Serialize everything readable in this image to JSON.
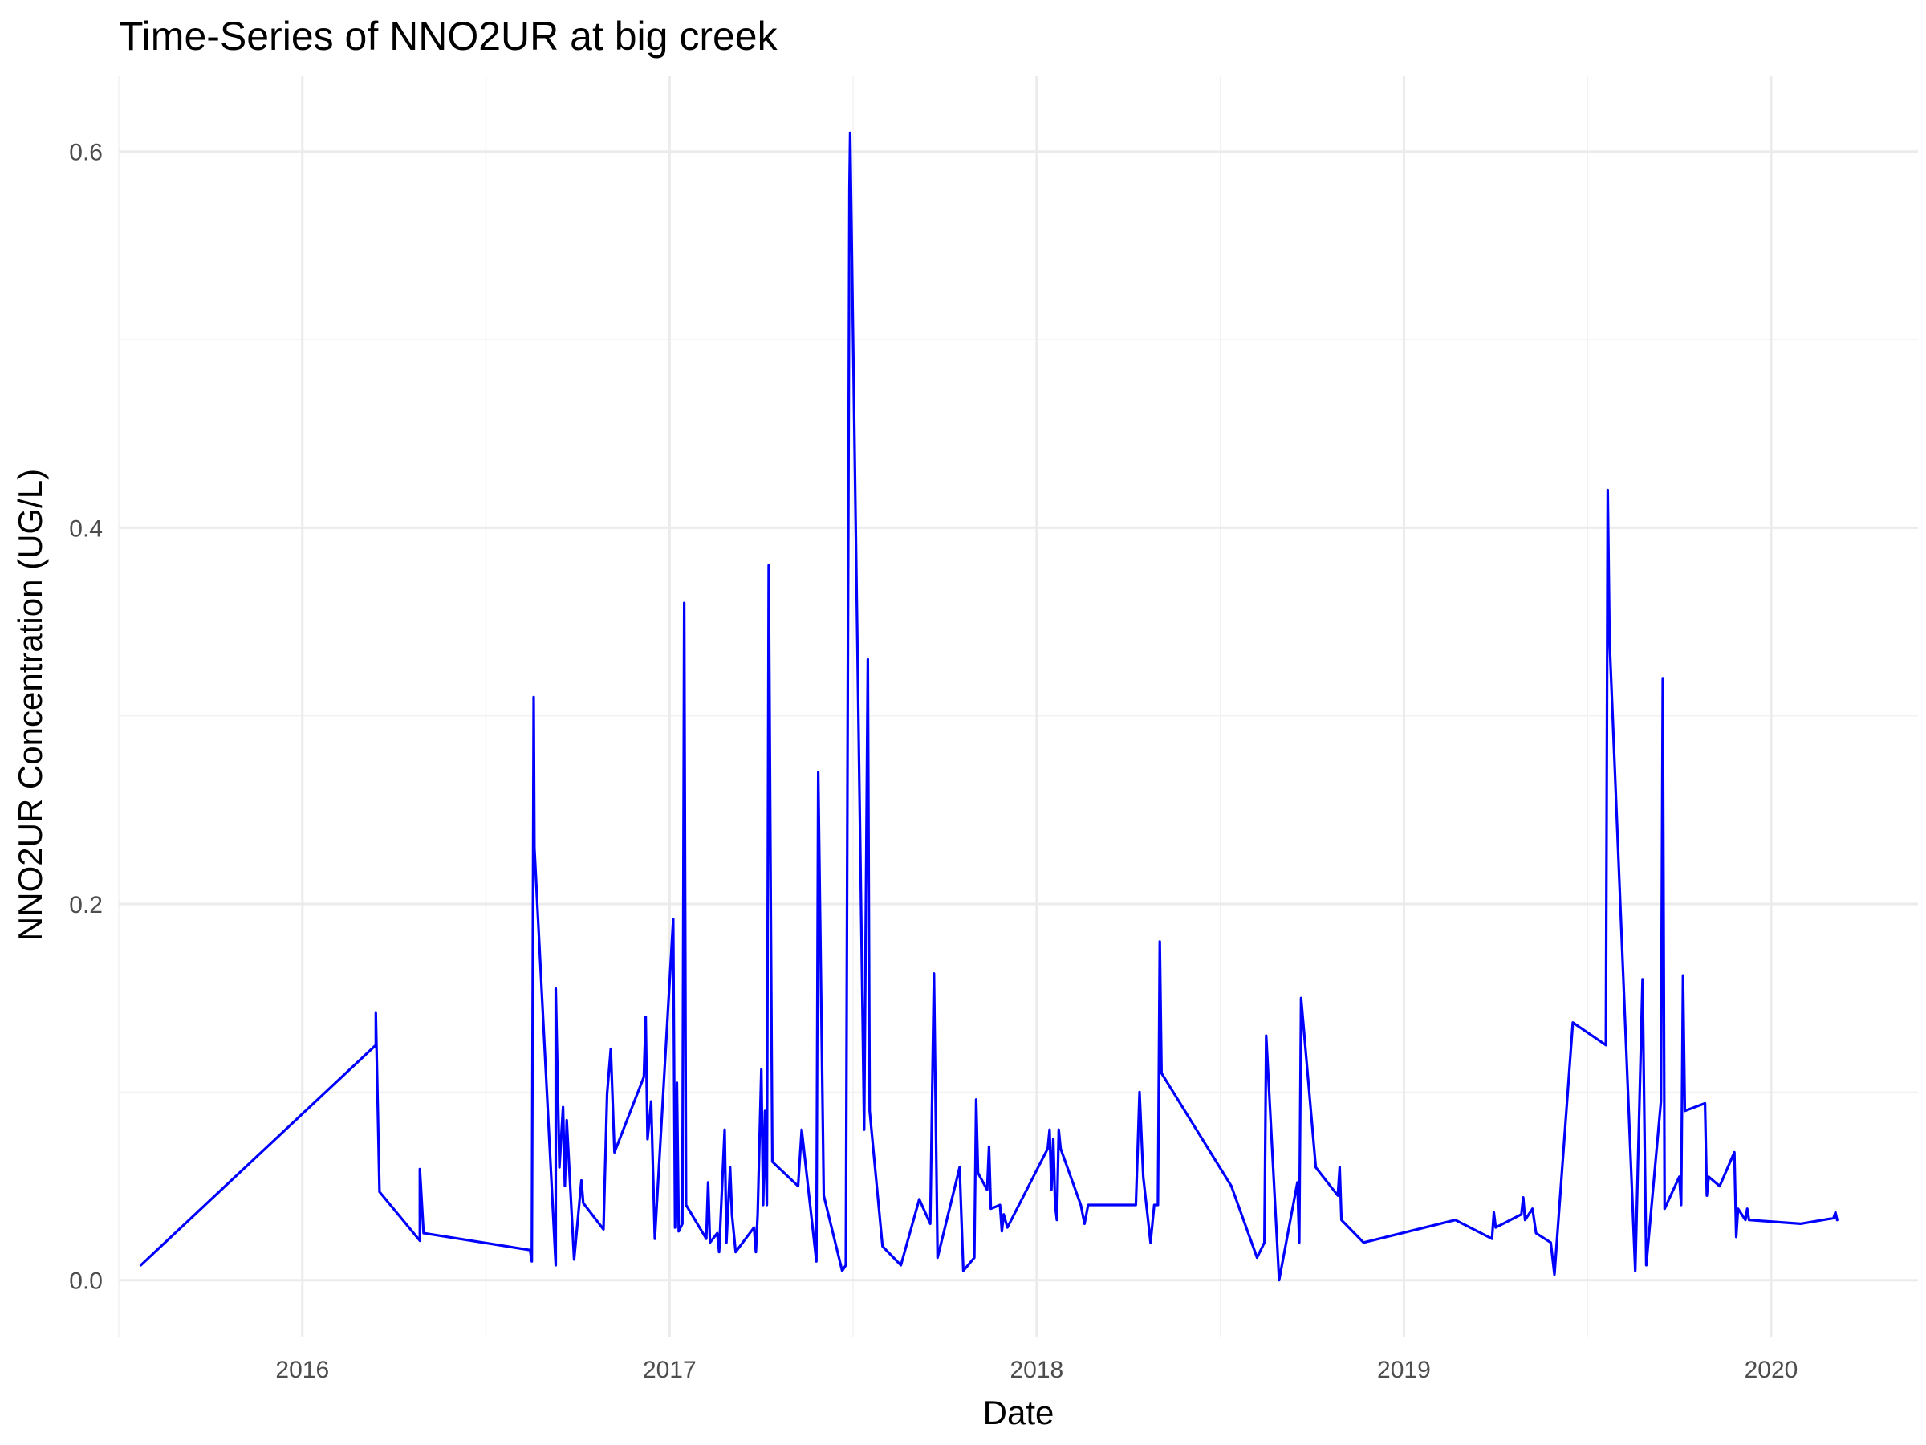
{
  "chart_data": {
    "type": "line",
    "title": "Time-Series of NNO2UR at big creek",
    "xlabel": "Date",
    "ylabel": "NNO2UR Concentration (UG/L)",
    "x_ticks": [
      "2016",
      "2017",
      "2018",
      "2019",
      "2020"
    ],
    "y_ticks": [
      "0.0",
      "0.2",
      "0.4",
      "0.6"
    ],
    "xlim": [
      2015.5,
      2020.4
    ],
    "ylim": [
      -0.03,
      0.64
    ],
    "grid": true,
    "legend": "none",
    "series": [
      {
        "color": "#0000ff",
        "points": [
          [
            2015.56,
            0.008
          ],
          [
            2016.2,
            0.125
          ],
          [
            2016.2,
            0.142
          ],
          [
            2016.21,
            0.047
          ],
          [
            2016.32,
            0.021
          ],
          [
            2016.32,
            0.059
          ],
          [
            2016.33,
            0.025
          ],
          [
            2016.62,
            0.016
          ],
          [
            2016.625,
            0.01
          ],
          [
            2016.63,
            0.31
          ],
          [
            2016.632,
            0.23
          ],
          [
            2016.69,
            0.008
          ],
          [
            2016.69,
            0.155
          ],
          [
            2016.7,
            0.06
          ],
          [
            2016.71,
            0.092
          ],
          [
            2016.715,
            0.05
          ],
          [
            2016.72,
            0.085
          ],
          [
            2016.74,
            0.011
          ],
          [
            2016.76,
            0.053
          ],
          [
            2016.765,
            0.041
          ],
          [
            2016.82,
            0.027
          ],
          [
            2016.83,
            0.099
          ],
          [
            2016.84,
            0.123
          ],
          [
            2016.85,
            0.068
          ],
          [
            2016.93,
            0.108
          ],
          [
            2016.935,
            0.14
          ],
          [
            2016.94,
            0.075
          ],
          [
            2016.95,
            0.095
          ],
          [
            2016.96,
            0.022
          ],
          [
            2017.01,
            0.192
          ],
          [
            2017.015,
            0.028
          ],
          [
            2017.02,
            0.105
          ],
          [
            2017.025,
            0.026
          ],
          [
            2017.035,
            0.03
          ],
          [
            2017.04,
            0.36
          ],
          [
            2017.045,
            0.04
          ],
          [
            2017.1,
            0.022
          ],
          [
            2017.105,
            0.052
          ],
          [
            2017.11,
            0.02
          ],
          [
            2017.13,
            0.025
          ],
          [
            2017.135,
            0.015
          ],
          [
            2017.15,
            0.08
          ],
          [
            2017.155,
            0.02
          ],
          [
            2017.165,
            0.06
          ],
          [
            2017.17,
            0.035
          ],
          [
            2017.18,
            0.015
          ],
          [
            2017.23,
            0.028
          ],
          [
            2017.235,
            0.015
          ],
          [
            2017.24,
            0.035
          ],
          [
            2017.25,
            0.112
          ],
          [
            2017.255,
            0.04
          ],
          [
            2017.26,
            0.09
          ],
          [
            2017.265,
            0.04
          ],
          [
            2017.27,
            0.38
          ],
          [
            2017.28,
            0.063
          ],
          [
            2017.35,
            0.05
          ],
          [
            2017.36,
            0.08
          ],
          [
            2017.4,
            0.01
          ],
          [
            2017.405,
            0.27
          ],
          [
            2017.42,
            0.045
          ],
          [
            2017.47,
            0.005
          ],
          [
            2017.48,
            0.008
          ],
          [
            2017.49,
            0.58
          ],
          [
            2017.492,
            0.61
          ],
          [
            2017.52,
            0.22
          ],
          [
            2017.53,
            0.08
          ],
          [
            2017.54,
            0.33
          ],
          [
            2017.545,
            0.09
          ],
          [
            2017.58,
            0.018
          ],
          [
            2017.63,
            0.008
          ],
          [
            2017.68,
            0.043
          ],
          [
            2017.71,
            0.03
          ],
          [
            2017.72,
            0.163
          ],
          [
            2017.73,
            0.012
          ],
          [
            2017.79,
            0.06
          ],
          [
            2017.8,
            0.005
          ],
          [
            2017.83,
            0.012
          ],
          [
            2017.835,
            0.096
          ],
          [
            2017.84,
            0.057
          ],
          [
            2017.865,
            0.048
          ],
          [
            2017.87,
            0.071
          ],
          [
            2017.875,
            0.038
          ],
          [
            2017.9,
            0.04
          ],
          [
            2017.905,
            0.026
          ],
          [
            2017.91,
            0.035
          ],
          [
            2017.92,
            0.028
          ],
          [
            2018.03,
            0.07
          ],
          [
            2018.035,
            0.08
          ],
          [
            2018.04,
            0.048
          ],
          [
            2018.045,
            0.075
          ],
          [
            2018.05,
            0.04
          ],
          [
            2018.055,
            0.032
          ],
          [
            2018.06,
            0.08
          ],
          [
            2018.065,
            0.07
          ],
          [
            2018.12,
            0.04
          ],
          [
            2018.13,
            0.03
          ],
          [
            2018.14,
            0.04
          ],
          [
            2018.27,
            0.04
          ],
          [
            2018.28,
            0.1
          ],
          [
            2018.29,
            0.055
          ],
          [
            2018.31,
            0.02
          ],
          [
            2018.32,
            0.04
          ],
          [
            2018.33,
            0.04
          ],
          [
            2018.335,
            0.18
          ],
          [
            2018.34,
            0.11
          ],
          [
            2018.53,
            0.05
          ],
          [
            2018.6,
            0.012
          ],
          [
            2018.62,
            0.02
          ],
          [
            2018.625,
            0.13
          ],
          [
            2018.66,
            0.0
          ],
          [
            2018.71,
            0.052
          ],
          [
            2018.715,
            0.02
          ],
          [
            2018.72,
            0.15
          ],
          [
            2018.76,
            0.06
          ],
          [
            2018.82,
            0.045
          ],
          [
            2018.825,
            0.06
          ],
          [
            2018.83,
            0.032
          ],
          [
            2018.89,
            0.02
          ],
          [
            2019.14,
            0.032
          ],
          [
            2019.24,
            0.022
          ],
          [
            2019.245,
            0.036
          ],
          [
            2019.25,
            0.028
          ],
          [
            2019.32,
            0.035
          ],
          [
            2019.325,
            0.044
          ],
          [
            2019.33,
            0.032
          ],
          [
            2019.35,
            0.038
          ],
          [
            2019.36,
            0.025
          ],
          [
            2019.4,
            0.02
          ],
          [
            2019.41,
            0.003
          ],
          [
            2019.46,
            0.137
          ],
          [
            2019.55,
            0.125
          ],
          [
            2019.555,
            0.42
          ],
          [
            2019.56,
            0.34
          ],
          [
            2019.63,
            0.005
          ],
          [
            2019.65,
            0.16
          ],
          [
            2019.66,
            0.008
          ],
          [
            2019.7,
            0.095
          ],
          [
            2019.705,
            0.32
          ],
          [
            2019.71,
            0.038
          ],
          [
            2019.75,
            0.055
          ],
          [
            2019.755,
            0.04
          ],
          [
            2019.76,
            0.162
          ],
          [
            2019.765,
            0.09
          ],
          [
            2019.82,
            0.094
          ],
          [
            2019.825,
            0.045
          ],
          [
            2019.83,
            0.055
          ],
          [
            2019.86,
            0.05
          ],
          [
            2019.9,
            0.068
          ],
          [
            2019.905,
            0.023
          ],
          [
            2019.91,
            0.038
          ],
          [
            2019.93,
            0.032
          ],
          [
            2019.935,
            0.038
          ],
          [
            2019.94,
            0.032
          ],
          [
            2020.08,
            0.03
          ],
          [
            2020.17,
            0.033
          ],
          [
            2020.175,
            0.036
          ],
          [
            2020.18,
            0.032
          ]
        ]
      }
    ]
  }
}
